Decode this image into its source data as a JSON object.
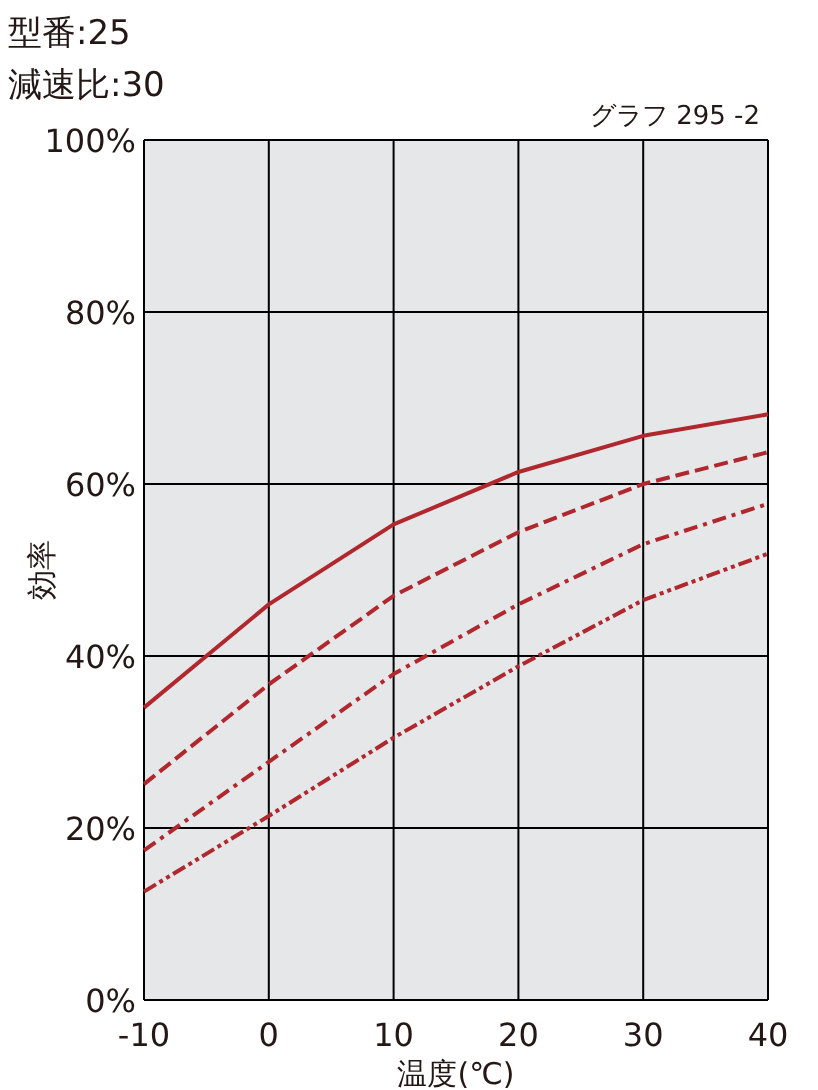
{
  "chart_data": {
    "type": "line",
    "title": "型番:25",
    "subtitle": "減速比:30",
    "annotations": [
      "グラフ 295 -2"
    ],
    "xlabel": "温度(℃)",
    "ylabel": "効率",
    "x": [
      -10,
      0,
      10,
      20,
      30,
      40
    ],
    "xlim": [
      -10,
      40
    ],
    "xticks": [
      -10,
      0,
      10,
      20,
      30,
      40
    ],
    "ylim": [
      0,
      100
    ],
    "yticks": [
      {
        "value": 0,
        "label": "0%"
      },
      {
        "value": 20,
        "label": "20%"
      },
      {
        "value": 40,
        "label": "40%"
      },
      {
        "value": 60,
        "label": "60%"
      },
      {
        "value": 80,
        "label": "80%"
      },
      {
        "value": 100,
        "label": "100%"
      }
    ],
    "grid": true,
    "marker": "none",
    "series": [
      {
        "color": "#b0282e",
        "line_style": "solid",
        "values": [
          34,
          46,
          55.3,
          61.4,
          65.6,
          68.1
        ]
      },
      {
        "color": "#b0282e",
        "line_style": "dashed",
        "values": [
          25.1,
          36.7,
          47,
          54.4,
          60,
          63.7
        ]
      },
      {
        "color": "#b0282e",
        "line_style": "dashdot",
        "values": [
          17.4,
          27.7,
          37.9,
          46,
          53,
          57.7
        ]
      },
      {
        "color": "#b0282e",
        "line_style": "dashdotdot",
        "values": [
          12.6,
          21.4,
          30.5,
          38.8,
          46.5,
          51.9
        ]
      }
    ]
  }
}
